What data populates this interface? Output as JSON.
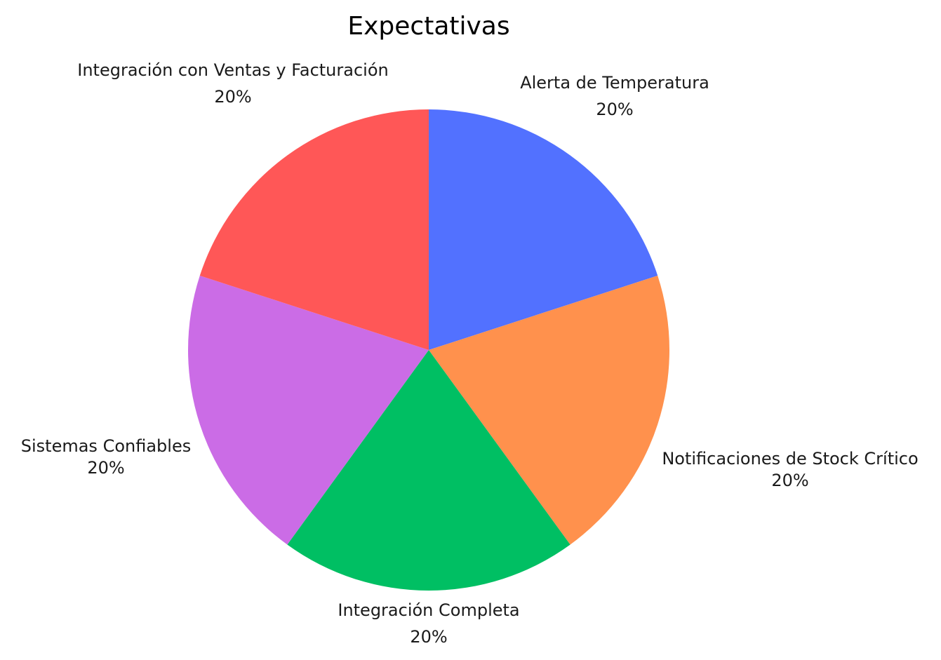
{
  "chart_data": {
    "type": "pie",
    "title": "Expectativas",
    "start_angle_deg": 90,
    "direction": "clockwise",
    "slices": [
      {
        "label": "Alerta de Temperatura",
        "value": 20,
        "percent_label": "20%",
        "color": "#5271ff"
      },
      {
        "label": "Notificaciones de Stock Crítico",
        "value": 20,
        "percent_label": "20%",
        "color": "#ff914d"
      },
      {
        "label": "Integración Completa",
        "value": 20,
        "percent_label": "20%",
        "color": "#00bf63"
      },
      {
        "label": "Sistemas Confiables",
        "value": 20,
        "percent_label": "20%",
        "color": "#cb6ce6"
      },
      {
        "label": "Integración con Ventas y Facturación",
        "value": 20,
        "percent_label": "20%",
        "color": "#ff5757"
      }
    ]
  }
}
